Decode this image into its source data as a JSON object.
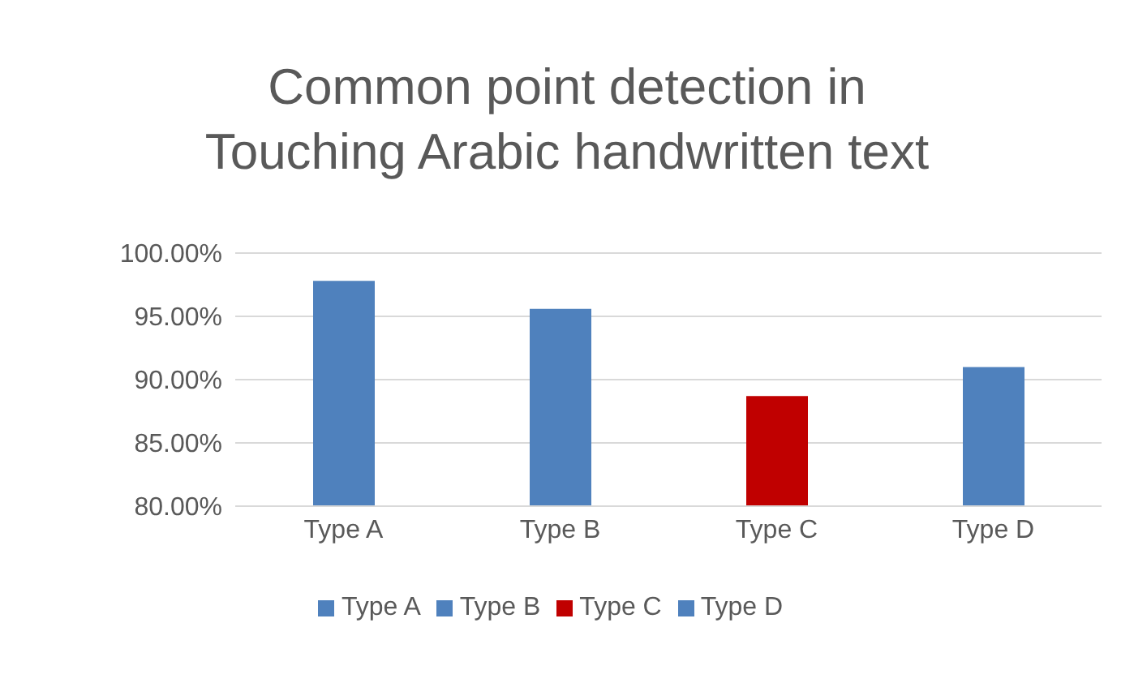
{
  "chart_data": {
    "type": "bar",
    "title": "Common point detection in Touching Arabic handwritten text",
    "categories": [
      "Type A",
      "Type B",
      "Type C",
      "Type D"
    ],
    "series": [
      {
        "name": "Type A",
        "color": "#4f81bd",
        "values": [
          97.8,
          null,
          null,
          null
        ]
      },
      {
        "name": "Type B",
        "color": "#4f81bd",
        "values": [
          null,
          95.6,
          null,
          null
        ]
      },
      {
        "name": "Type C",
        "color": "#c00000",
        "values": [
          null,
          null,
          88.7,
          null
        ]
      },
      {
        "name": "Type D",
        "color": "#4f81bd",
        "values": [
          null,
          null,
          null,
          91.0
        ]
      }
    ],
    "stacked": true,
    "ylim": [
      80,
      100
    ],
    "yticks": [
      {
        "value": 80,
        "label": "80.00%"
      },
      {
        "value": 85,
        "label": "85.00%"
      },
      {
        "value": 90,
        "label": "90.00%"
      },
      {
        "value": 95,
        "label": "95.00%"
      },
      {
        "value": 100,
        "label": "100.00%"
      }
    ],
    "grid": "y",
    "legend": "bottom"
  }
}
